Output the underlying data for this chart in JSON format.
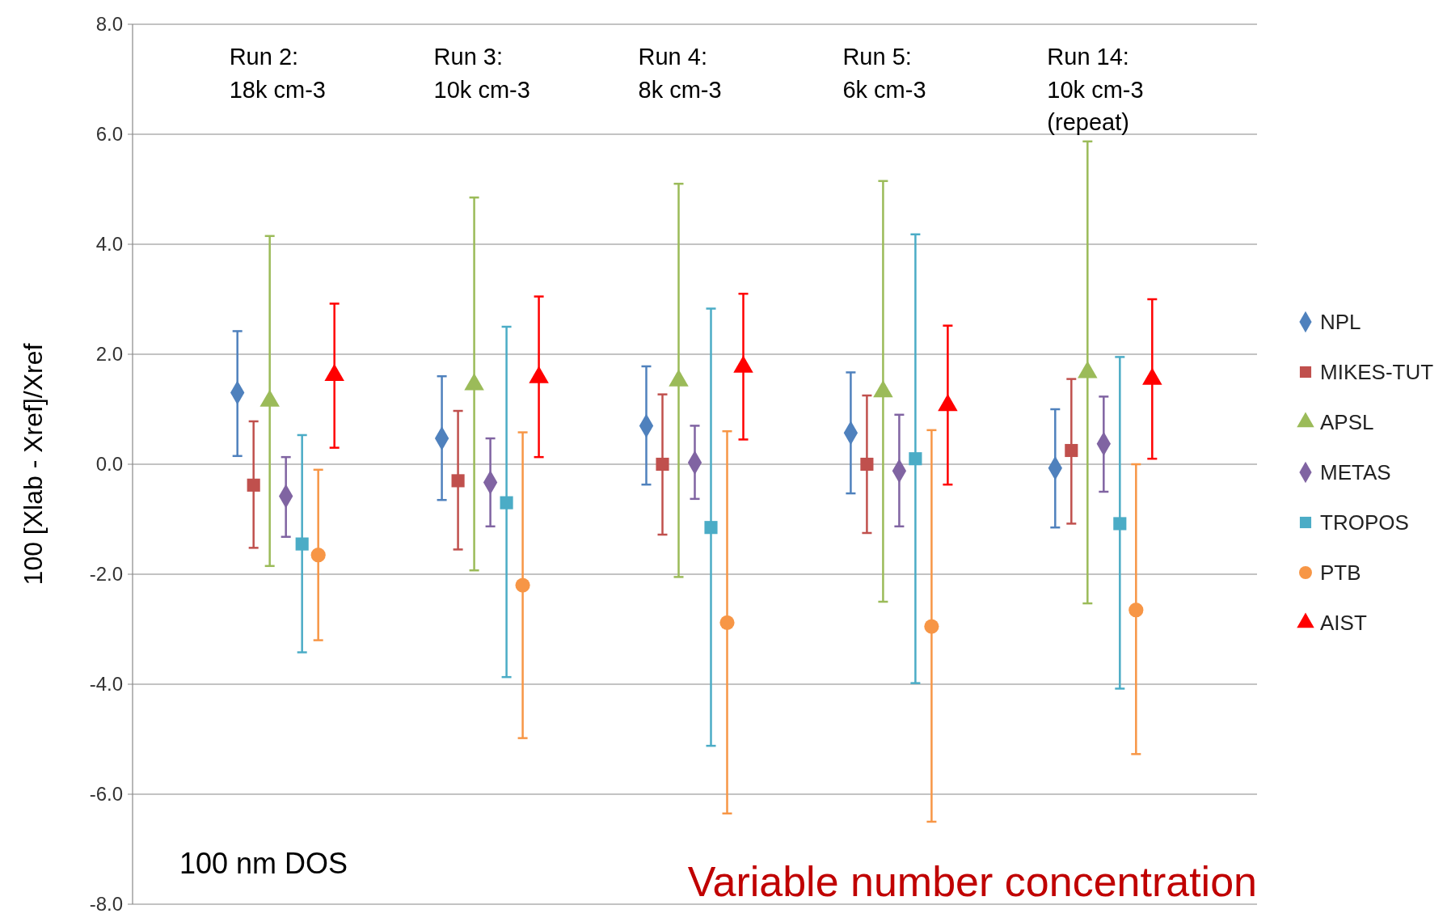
{
  "chart_data": {
    "type": "scatter",
    "categories": [
      null,
      null,
      null,
      null,
      null
    ],
    "ylabel": "100 [Xlab - Xref]/Xref",
    "ylim": [
      -8,
      8
    ],
    "yticks": [
      {
        "value": -8,
        "label": "-8.0"
      },
      {
        "value": -6,
        "label": "-6.0"
      },
      {
        "value": -4,
        "label": "-4.0"
      },
      {
        "value": -2,
        "label": "-2.0"
      },
      {
        "value": 0,
        "label": "0.0"
      },
      {
        "value": 2,
        "label": "2.0"
      },
      {
        "value": 4,
        "label": "4.0"
      },
      {
        "value": 6,
        "label": "6.0"
      },
      {
        "value": 8,
        "label": "8.0"
      }
    ],
    "grid": "y",
    "legend": "right",
    "tick_labels": "y",
    "series": [
      {
        "name": "NPL",
        "color": "#4f81bd",
        "marker": "diamond",
        "values": [
          1.3,
          0.47,
          0.7,
          0.57,
          -0.07
        ],
        "errors": [
          [
            0.15,
            2.42
          ],
          [
            -0.65,
            1.6
          ],
          [
            -0.37,
            1.78
          ],
          [
            -0.53,
            1.67
          ],
          [
            -1.15,
            1.0
          ]
        ]
      },
      {
        "name": "MIKES-TUT",
        "color": "#c0504d",
        "marker": "square",
        "values": [
          -0.38,
          -0.3,
          0.0,
          0.0,
          0.25
        ],
        "errors": [
          [
            -1.52,
            0.78
          ],
          [
            -1.55,
            0.97
          ],
          [
            -1.28,
            1.27
          ],
          [
            -1.25,
            1.25
          ],
          [
            -1.08,
            1.55
          ]
        ]
      },
      {
        "name": "APSL",
        "color": "#9bbb59",
        "marker": "triangle",
        "values": [
          1.15,
          1.45,
          1.52,
          1.32,
          1.67
        ],
        "errors": [
          [
            -1.85,
            4.15
          ],
          [
            -1.93,
            4.85
          ],
          [
            -2.05,
            5.1
          ],
          [
            -2.5,
            5.15
          ],
          [
            -2.53,
            5.87
          ]
        ]
      },
      {
        "name": "METAS",
        "color": "#8064a2",
        "marker": "diamond",
        "values": [
          -0.58,
          -0.33,
          0.03,
          -0.12,
          0.37
        ],
        "errors": [
          [
            -1.32,
            0.13
          ],
          [
            -1.13,
            0.47
          ],
          [
            -0.63,
            0.7
          ],
          [
            -1.13,
            0.9
          ],
          [
            -0.5,
            1.23
          ]
        ]
      },
      {
        "name": "TROPOS",
        "color": "#4bacc6",
        "marker": "square",
        "values": [
          -1.45,
          -0.7,
          -1.15,
          0.1,
          -1.08
        ],
        "errors": [
          [
            -3.42,
            0.53
          ],
          [
            -3.87,
            2.5
          ],
          [
            -5.12,
            2.83
          ],
          [
            -3.98,
            4.18
          ],
          [
            -4.08,
            1.95
          ]
        ]
      },
      {
        "name": "PTB",
        "color": "#f79646",
        "marker": "circle",
        "values": [
          -1.65,
          -2.2,
          -2.88,
          -2.95,
          -2.65
        ],
        "errors": [
          [
            -3.2,
            -0.1
          ],
          [
            -4.98,
            0.58
          ],
          [
            -6.35,
            0.6
          ],
          [
            -6.5,
            0.62
          ],
          [
            -5.27,
            0.0
          ]
        ]
      },
      {
        "name": "AIST",
        "color": "#ff0000",
        "marker": "triangle",
        "values": [
          1.62,
          1.58,
          1.77,
          1.07,
          1.55
        ],
        "errors": [
          [
            0.3,
            2.92
          ],
          [
            0.13,
            3.05
          ],
          [
            0.45,
            3.1
          ],
          [
            -0.37,
            2.52
          ],
          [
            0.1,
            3.0
          ]
        ]
      }
    ],
    "annotations": [
      "Run 2:\n18k cm-3",
      "Run 3:\n10k cm-3",
      "Run 4:\n8k cm-3",
      "Run 5:\n6k cm-3",
      "Run 14:\n10k cm-3\n(repeat)",
      "100 nm DOS",
      "Variable number concentration"
    ]
  }
}
